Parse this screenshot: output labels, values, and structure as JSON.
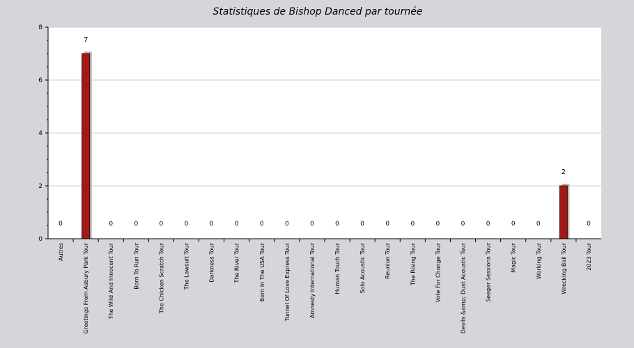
{
  "chart_data": {
    "type": "bar",
    "title": "Statistiques de Bishop Danced par tournée",
    "xlabel": "",
    "ylabel": "",
    "ylim": [
      0,
      8
    ],
    "yticks": [
      0,
      2,
      4,
      6,
      8
    ],
    "grid": true,
    "categories": [
      "Autres",
      "Greetings From Asbury Park Tour",
      "The Wild And Innocent Tour",
      "Born To Run Tour",
      "The Chicken Scratch Tour",
      "The Lawsuit Tour",
      "Darkness Tour",
      "The River Tour",
      "Born In The USA Tour",
      "Tunnel Of Love Express Tour",
      "Amnesty International Tour",
      "Human Touch Tour",
      "Solo Acoustic Tour",
      "Reunion Tour",
      "The Rising Tour",
      "Vote For Change Tour",
      "Devils &amp; Dust Acoustic Tour",
      "Seeger Sessions Tour",
      "Magic Tour",
      "Working Tour",
      "Wrecking Ball Tour",
      "2023 Tour"
    ],
    "values": [
      0,
      7,
      0,
      0,
      0,
      0,
      0,
      0,
      0,
      0,
      0,
      0,
      0,
      0,
      0,
      0,
      0,
      0,
      0,
      0,
      2,
      0
    ],
    "colors": {
      "page_background": "#d6d5da",
      "plot_background": "#ffffff",
      "bar_fill": "#a51818",
      "bar_stroke": "#3a0a0a",
      "bar_shadow": "#b4b4b4",
      "grid": "#cccccc",
      "axis": "#000000"
    }
  }
}
